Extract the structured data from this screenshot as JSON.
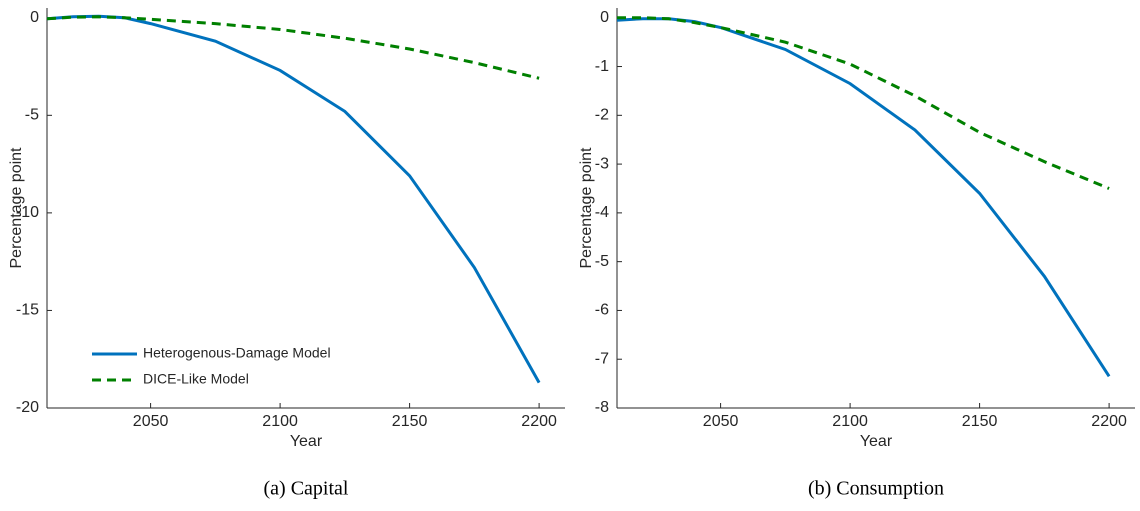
{
  "chart_data": [
    {
      "type": "line",
      "caption": "(a) Capital",
      "xlabel": "Year",
      "ylabel": "Percentage point",
      "x": [
        2010,
        2020,
        2030,
        2040,
        2050,
        2075,
        2100,
        2125,
        2150,
        2175,
        2200
      ],
      "series": [
        {
          "name": "Heterogenous-Damage Model",
          "color": "#0072bd",
          "style": "solid",
          "values": [
            -0.05,
            0.05,
            0.08,
            0.0,
            -0.3,
            -1.2,
            -2.7,
            -4.8,
            -8.1,
            -12.8,
            -18.7
          ]
        },
        {
          "name": "DICE-Like Model",
          "color": "#008000",
          "style": "dashed",
          "values": [
            -0.05,
            0.03,
            0.05,
            0.0,
            -0.08,
            -0.3,
            -0.6,
            -1.05,
            -1.6,
            -2.3,
            -3.1
          ]
        }
      ],
      "xlim": [
        2010,
        2210
      ],
      "xticks": [
        2050,
        2100,
        2150,
        2200
      ],
      "ylim": [
        -20,
        0.5
      ],
      "yticks": [
        -20,
        -15,
        -10,
        -5,
        0
      ],
      "legend": "lower left"
    },
    {
      "type": "line",
      "caption": "(b) Consumption",
      "xlabel": "Year",
      "ylabel": "Percentage point",
      "x": [
        2010,
        2020,
        2030,
        2040,
        2050,
        2075,
        2100,
        2125,
        2150,
        2175,
        2200
      ],
      "series": [
        {
          "color": "#0072bd",
          "style": "solid",
          "values": [
            -0.05,
            -0.02,
            -0.02,
            -0.08,
            -0.2,
            -0.65,
            -1.35,
            -2.3,
            -3.6,
            -5.3,
            -7.35
          ]
        },
        {
          "color": "#008000",
          "style": "dashed",
          "values": [
            0,
            0,
            -0.02,
            -0.1,
            -0.2,
            -0.5,
            -0.95,
            -1.6,
            -2.35,
            -2.95,
            -3.5
          ]
        }
      ],
      "xlim": [
        2010,
        2210
      ],
      "xticks": [
        2050,
        2100,
        2150,
        2200
      ],
      "ylim": [
        -8,
        0.2
      ],
      "yticks": [
        -8,
        -7,
        -6,
        -5,
        -4,
        -3,
        -2,
        -1,
        0
      ]
    }
  ]
}
